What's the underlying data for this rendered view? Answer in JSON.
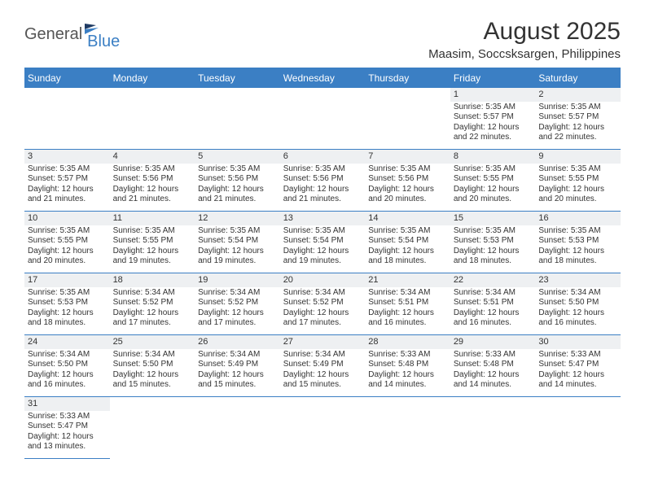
{
  "logo": {
    "text1": "General",
    "text2": "Blue"
  },
  "title": "August 2025",
  "location": "Maasim, Soccsksargen, Philippines",
  "colors": {
    "accent": "#3b7fc4",
    "header_bg": "#3b7fc4",
    "daynum_bg": "#eef0f2",
    "text": "#333333",
    "bg": "#ffffff"
  },
  "fonts": {
    "title_size": 30,
    "location_size": 15,
    "dow_size": 12,
    "daynum_size": 11,
    "body_size": 10
  },
  "dow": [
    "Sunday",
    "Monday",
    "Tuesday",
    "Wednesday",
    "Thursday",
    "Friday",
    "Saturday"
  ],
  "weeks": [
    [
      null,
      null,
      null,
      null,
      null,
      {
        "n": "1",
        "sr": "5:35 AM",
        "ss": "5:57 PM",
        "dl": "12 hours and 22 minutes."
      },
      {
        "n": "2",
        "sr": "5:35 AM",
        "ss": "5:57 PM",
        "dl": "12 hours and 22 minutes."
      }
    ],
    [
      {
        "n": "3",
        "sr": "5:35 AM",
        "ss": "5:57 PM",
        "dl": "12 hours and 21 minutes."
      },
      {
        "n": "4",
        "sr": "5:35 AM",
        "ss": "5:56 PM",
        "dl": "12 hours and 21 minutes."
      },
      {
        "n": "5",
        "sr": "5:35 AM",
        "ss": "5:56 PM",
        "dl": "12 hours and 21 minutes."
      },
      {
        "n": "6",
        "sr": "5:35 AM",
        "ss": "5:56 PM",
        "dl": "12 hours and 21 minutes."
      },
      {
        "n": "7",
        "sr": "5:35 AM",
        "ss": "5:56 PM",
        "dl": "12 hours and 20 minutes."
      },
      {
        "n": "8",
        "sr": "5:35 AM",
        "ss": "5:55 PM",
        "dl": "12 hours and 20 minutes."
      },
      {
        "n": "9",
        "sr": "5:35 AM",
        "ss": "5:55 PM",
        "dl": "12 hours and 20 minutes."
      }
    ],
    [
      {
        "n": "10",
        "sr": "5:35 AM",
        "ss": "5:55 PM",
        "dl": "12 hours and 20 minutes."
      },
      {
        "n": "11",
        "sr": "5:35 AM",
        "ss": "5:55 PM",
        "dl": "12 hours and 19 minutes."
      },
      {
        "n": "12",
        "sr": "5:35 AM",
        "ss": "5:54 PM",
        "dl": "12 hours and 19 minutes."
      },
      {
        "n": "13",
        "sr": "5:35 AM",
        "ss": "5:54 PM",
        "dl": "12 hours and 19 minutes."
      },
      {
        "n": "14",
        "sr": "5:35 AM",
        "ss": "5:54 PM",
        "dl": "12 hours and 18 minutes."
      },
      {
        "n": "15",
        "sr": "5:35 AM",
        "ss": "5:53 PM",
        "dl": "12 hours and 18 minutes."
      },
      {
        "n": "16",
        "sr": "5:35 AM",
        "ss": "5:53 PM",
        "dl": "12 hours and 18 minutes."
      }
    ],
    [
      {
        "n": "17",
        "sr": "5:35 AM",
        "ss": "5:53 PM",
        "dl": "12 hours and 18 minutes."
      },
      {
        "n": "18",
        "sr": "5:34 AM",
        "ss": "5:52 PM",
        "dl": "12 hours and 17 minutes."
      },
      {
        "n": "19",
        "sr": "5:34 AM",
        "ss": "5:52 PM",
        "dl": "12 hours and 17 minutes."
      },
      {
        "n": "20",
        "sr": "5:34 AM",
        "ss": "5:52 PM",
        "dl": "12 hours and 17 minutes."
      },
      {
        "n": "21",
        "sr": "5:34 AM",
        "ss": "5:51 PM",
        "dl": "12 hours and 16 minutes."
      },
      {
        "n": "22",
        "sr": "5:34 AM",
        "ss": "5:51 PM",
        "dl": "12 hours and 16 minutes."
      },
      {
        "n": "23",
        "sr": "5:34 AM",
        "ss": "5:50 PM",
        "dl": "12 hours and 16 minutes."
      }
    ],
    [
      {
        "n": "24",
        "sr": "5:34 AM",
        "ss": "5:50 PM",
        "dl": "12 hours and 16 minutes."
      },
      {
        "n": "25",
        "sr": "5:34 AM",
        "ss": "5:50 PM",
        "dl": "12 hours and 15 minutes."
      },
      {
        "n": "26",
        "sr": "5:34 AM",
        "ss": "5:49 PM",
        "dl": "12 hours and 15 minutes."
      },
      {
        "n": "27",
        "sr": "5:34 AM",
        "ss": "5:49 PM",
        "dl": "12 hours and 15 minutes."
      },
      {
        "n": "28",
        "sr": "5:33 AM",
        "ss": "5:48 PM",
        "dl": "12 hours and 14 minutes."
      },
      {
        "n": "29",
        "sr": "5:33 AM",
        "ss": "5:48 PM",
        "dl": "12 hours and 14 minutes."
      },
      {
        "n": "30",
        "sr": "5:33 AM",
        "ss": "5:47 PM",
        "dl": "12 hours and 14 minutes."
      }
    ],
    [
      {
        "n": "31",
        "sr": "5:33 AM",
        "ss": "5:47 PM",
        "dl": "12 hours and 13 minutes."
      },
      null,
      null,
      null,
      null,
      null,
      null
    ]
  ],
  "labels": {
    "sunrise": "Sunrise:",
    "sunset": "Sunset:",
    "daylight": "Daylight:"
  }
}
